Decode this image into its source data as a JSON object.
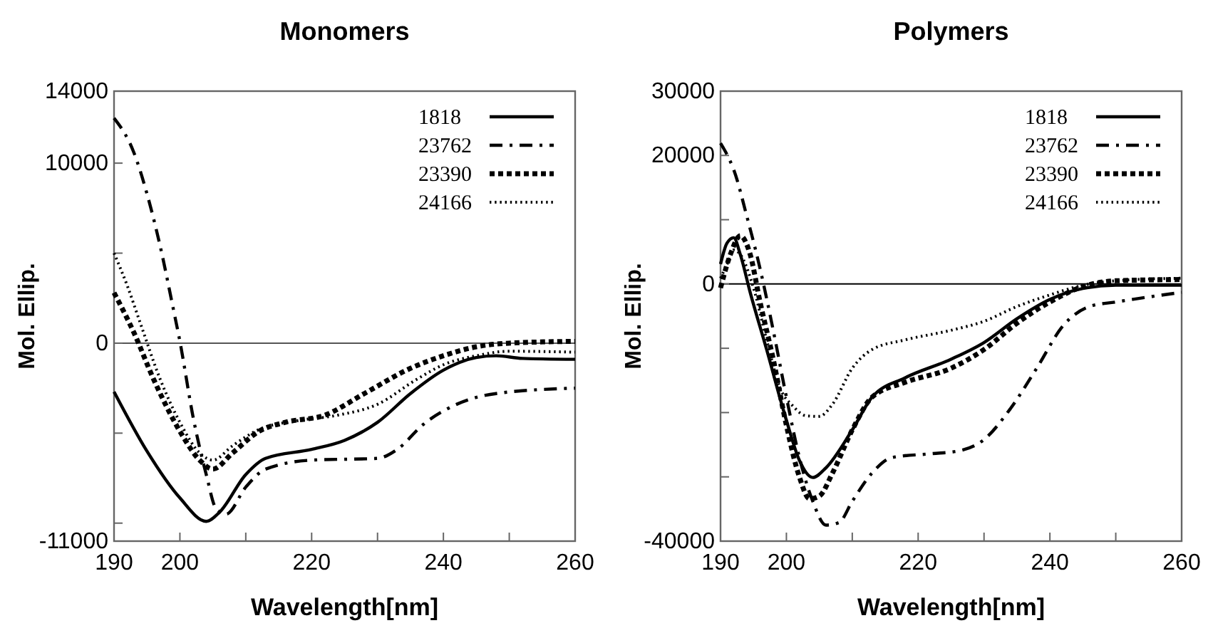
{
  "chart_data": [
    {
      "type": "line",
      "title": "Monomers",
      "xlabel": "Wavelength[nm]",
      "ylabel": "Mol. Ellip.",
      "xlim": [
        190,
        260
      ],
      "ylim": [
        -11000,
        14000
      ],
      "xticks": [
        190,
        200,
        {
          "value": 210,
          "label": null
        },
        220,
        {
          "value": 230,
          "label": null
        },
        240,
        {
          "value": 250,
          "label": null
        },
        260
      ],
      "yticks": [
        -11000,
        {
          "value": -10000,
          "label": null
        },
        {
          "value": -5000,
          "label": null
        },
        0,
        {
          "value": 5000,
          "label": null
        },
        10000,
        14000
      ],
      "legend": "top right",
      "grid": false,
      "ref_lines": [
        {
          "axis": "y",
          "value": 0,
          "color": "#555555"
        }
      ],
      "series": [
        {
          "name": "1818",
          "color": "#000000",
          "line_style": "solid",
          "x": [
            190,
            195,
            200,
            204,
            206,
            210,
            213,
            220,
            225,
            230,
            235,
            240,
            245,
            248,
            252,
            260
          ],
          "values": [
            -2700,
            -6000,
            -8600,
            -9900,
            -9400,
            -7300,
            -6400,
            -5900,
            -5400,
            -4400,
            -2800,
            -1500,
            -800,
            -700,
            -850,
            -900
          ]
        },
        {
          "name": "23762",
          "color": "#000000",
          "line_style": "dashdot",
          "x": [
            190,
            193,
            195,
            197,
            199,
            200,
            202,
            204,
            205.5,
            207,
            210,
            213,
            220,
            230,
            233,
            237,
            242,
            248,
            260
          ],
          "values": [
            12500,
            10600,
            8300,
            5400,
            1900,
            100,
            -4100,
            -7300,
            -9200,
            -9500,
            -8000,
            -7000,
            -6500,
            -6400,
            -5900,
            -4500,
            -3400,
            -2800,
            -2500
          ]
        },
        {
          "name": "23390",
          "color": "#000000",
          "line_style": "dashed",
          "x": [
            190,
            193,
            196,
            200,
            203,
            205,
            208,
            212,
            216,
            222,
            228,
            235,
            240,
            245,
            250,
            260
          ],
          "values": [
            2800,
            600,
            -2000,
            -4900,
            -6500,
            -7000,
            -6100,
            -4900,
            -4400,
            -4000,
            -2800,
            -1400,
            -700,
            -200,
            0,
            100
          ]
        },
        {
          "name": "24166",
          "color": "#000000",
          "line_style": "dotted",
          "x": [
            190,
            192,
            194,
            197,
            200,
            203,
            205,
            208,
            212,
            218,
            224,
            230,
            236,
            240,
            245,
            250,
            260
          ],
          "values": [
            5000,
            3200,
            1100,
            -2000,
            -4400,
            -6100,
            -6500,
            -5700,
            -4800,
            -4300,
            -4000,
            -3400,
            -2000,
            -1200,
            -700,
            -450,
            -500
          ]
        }
      ]
    },
    {
      "type": "line",
      "title": "Polymers",
      "xlabel": "Wavelength[nm]",
      "ylabel": "Mol. Ellip.",
      "xlim": [
        190,
        260
      ],
      "ylim": [
        -40000,
        30000
      ],
      "xticks": [
        190,
        200,
        {
          "value": 210,
          "label": null
        },
        220,
        {
          "value": 230,
          "label": null
        },
        240,
        {
          "value": 250,
          "label": null
        },
        260
      ],
      "yticks": [
        -40000,
        {
          "value": -30000,
          "label": null
        },
        {
          "value": -20000,
          "label": null
        },
        {
          "value": -10000,
          "label": null
        },
        0,
        {
          "value": 10000,
          "label": null
        },
        20000,
        30000
      ],
      "legend": "top right",
      "grid": false,
      "ref_lines": [
        {
          "axis": "y",
          "value": 0,
          "color": "#000000"
        }
      ],
      "series": [
        {
          "name": "1818",
          "color": "#000000",
          "line_style": "solid",
          "x": [
            190,
            191,
            192,
            193,
            194.5,
            197,
            200,
            202,
            204,
            206,
            210,
            213,
            218,
            225,
            230,
            235,
            240,
            245,
            250,
            260
          ],
          "values": [
            3100,
            6400,
            7200,
            4600,
            -1300,
            -10200,
            -21200,
            -27500,
            -30100,
            -28600,
            -22700,
            -17600,
            -14600,
            -11700,
            -9100,
            -5400,
            -2400,
            -700,
            -200,
            -200
          ]
        },
        {
          "name": "23762",
          "color": "#000000",
          "line_style": "dashdot",
          "x": [
            190,
            191,
            192,
            194,
            196,
            198,
            200,
            202,
            204,
            206,
            208,
            210,
            213,
            216,
            222,
            226,
            230,
            234,
            238,
            242,
            246,
            250,
            260
          ],
          "values": [
            21900,
            20100,
            17800,
            10500,
            2400,
            -7200,
            -17600,
            -27100,
            -33800,
            -37500,
            -37100,
            -33800,
            -29400,
            -27000,
            -26400,
            -26000,
            -24200,
            -19400,
            -13100,
            -6500,
            -3500,
            -2800,
            -1300
          ]
        },
        {
          "name": "23390",
          "color": "#000000",
          "line_style": "dashed",
          "x": [
            190,
            191.5,
            193,
            194.5,
            196,
            198,
            200,
            202,
            203.5,
            205,
            207,
            210,
            213,
            218,
            225,
            230,
            235,
            240,
            245,
            250,
            260
          ],
          "values": [
            -600,
            4600,
            7500,
            4600,
            -2800,
            -11700,
            -22000,
            -30100,
            -33400,
            -33000,
            -29400,
            -22700,
            -17600,
            -15300,
            -13100,
            -10200,
            -6100,
            -2800,
            -400,
            500,
            700
          ]
        },
        {
          "name": "24166",
          "color": "#000000",
          "line_style": "dotted",
          "x": [
            190,
            191,
            192,
            193,
            195,
            197,
            199,
            201,
            203,
            205,
            207,
            210,
            213,
            218,
            225,
            230,
            235,
            240,
            245,
            250,
            260
          ],
          "values": [
            900,
            3100,
            5300,
            4600,
            -600,
            -8700,
            -16100,
            -19000,
            -20500,
            -20600,
            -18700,
            -13100,
            -10200,
            -8700,
            -7200,
            -5800,
            -3500,
            -1700,
            -200,
            500,
            900
          ]
        }
      ]
    }
  ]
}
